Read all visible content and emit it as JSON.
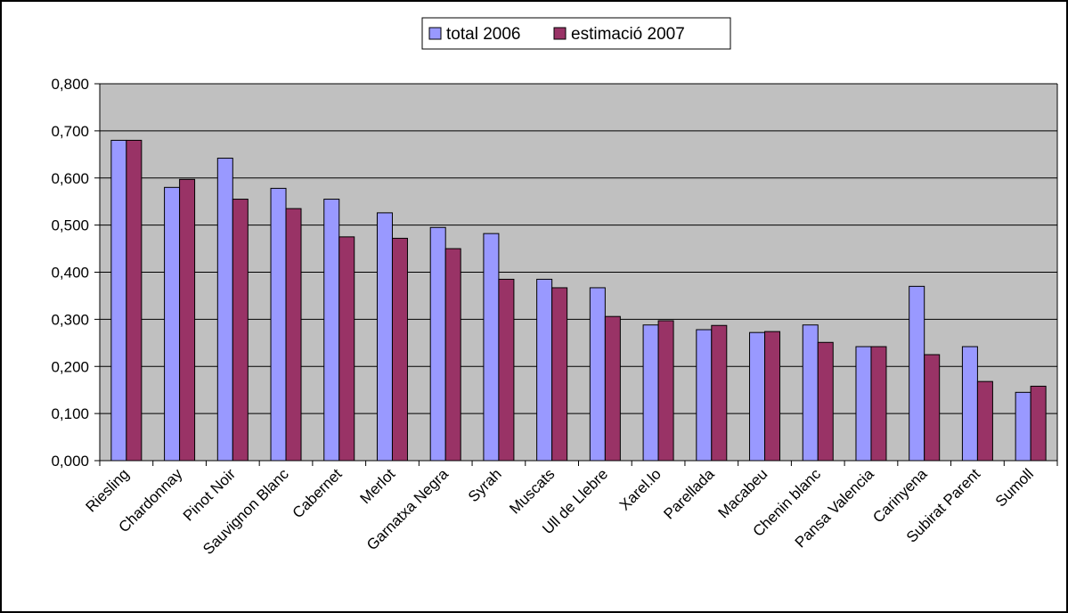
{
  "chart_data": {
    "type": "bar",
    "title": "",
    "xlabel": "",
    "ylabel": "",
    "ylim": [
      0,
      0.8
    ],
    "ytick_step": 0.1,
    "ytick_labels": [
      "0,000",
      "0,100",
      "0,200",
      "0,300",
      "0,400",
      "0,500",
      "0,600",
      "0,700",
      "0,800"
    ],
    "grid": true,
    "legend_position": "top",
    "categories": [
      "Riesling",
      "Chardonnay",
      "Pinot Noir",
      "Sauvignon Blanc",
      "Cabernet",
      "Merlot",
      "Garnatxa Negra",
      "Syrah",
      "Muscats",
      "Ull de Llebre",
      "Xarel.lo",
      "Parellada",
      "Macabeu",
      "Chenin blanc",
      "Pansa Valencia",
      "Carinyena",
      "Subirat Parent",
      "Sumoll"
    ],
    "series": [
      {
        "name": "total 2006",
        "color": "#9999ff",
        "values": [
          0.68,
          0.58,
          0.642,
          0.578,
          0.555,
          0.526,
          0.495,
          0.482,
          0.385,
          0.367,
          0.288,
          0.278,
          0.272,
          0.288,
          0.242,
          0.37,
          0.242,
          0.145
        ]
      },
      {
        "name": "estimació 2007",
        "color": "#993366",
        "values": [
          0.68,
          0.597,
          0.555,
          0.535,
          0.475,
          0.472,
          0.45,
          0.385,
          0.367,
          0.306,
          0.297,
          0.287,
          0.274,
          0.251,
          0.242,
          0.225,
          0.168,
          0.158
        ]
      }
    ],
    "colors": {
      "plot_background": "#c0c0c0",
      "gridline": "#000000",
      "axis": "#000000"
    }
  }
}
